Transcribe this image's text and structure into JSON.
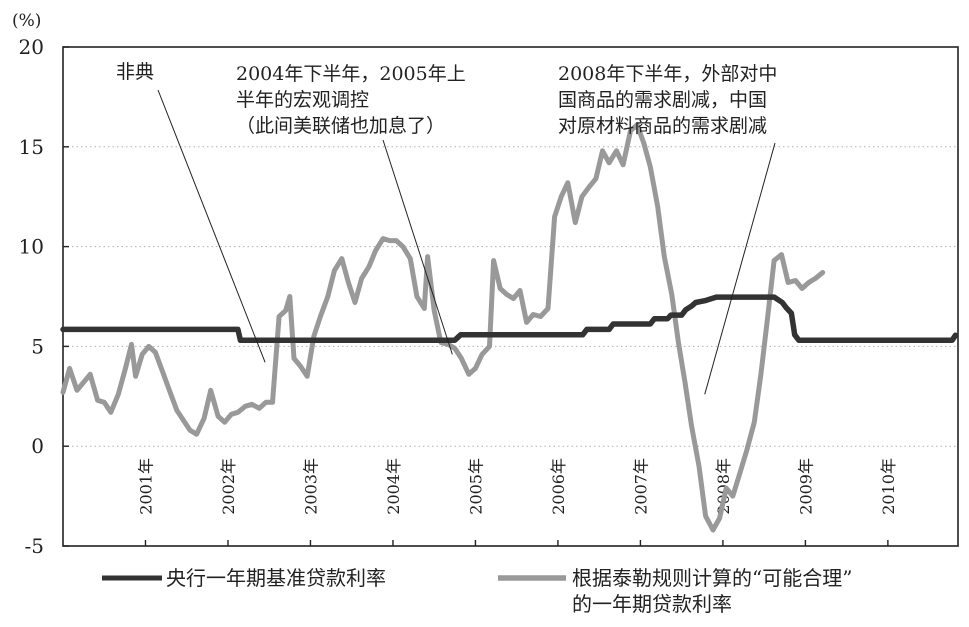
{
  "chart_data": {
    "type": "line",
    "unit_label": "(%)",
    "ylim": [
      -5,
      20
    ],
    "yticks": [
      -5,
      0,
      5,
      10,
      15,
      20
    ],
    "xlim": [
      2000.0,
      2010.85
    ],
    "xticks": [
      {
        "label": "2001年",
        "x": 2001.0
      },
      {
        "label": "2002年",
        "x": 2002.0
      },
      {
        "label": "2003年",
        "x": 2003.0
      },
      {
        "label": "2004年",
        "x": 2004.0
      },
      {
        "label": "2005年",
        "x": 2005.0
      },
      {
        "label": "2006年",
        "x": 2006.0
      },
      {
        "label": "2007年",
        "x": 2007.0
      },
      {
        "label": "2008年",
        "x": 2008.0
      },
      {
        "label": "2009年",
        "x": 2009.0
      },
      {
        "label": "2010年",
        "x": 2010.0
      }
    ],
    "grid": "horizontal-dotted",
    "legend_position": "bottom",
    "series": [
      {
        "name": "央行一年期基准贷款利率",
        "color": "#333333",
        "points": [
          [
            2000.0,
            5.85
          ],
          [
            2002.12,
            5.85
          ],
          [
            2002.15,
            5.31
          ],
          [
            2004.75,
            5.31
          ],
          [
            2004.82,
            5.58
          ],
          [
            2006.3,
            5.58
          ],
          [
            2006.35,
            5.85
          ],
          [
            2006.62,
            5.85
          ],
          [
            2006.67,
            6.12
          ],
          [
            2007.12,
            6.12
          ],
          [
            2007.17,
            6.39
          ],
          [
            2007.33,
            6.39
          ],
          [
            2007.37,
            6.57
          ],
          [
            2007.5,
            6.57
          ],
          [
            2007.55,
            6.84
          ],
          [
            2007.62,
            7.02
          ],
          [
            2007.67,
            7.2
          ],
          [
            2007.78,
            7.29
          ],
          [
            2007.92,
            7.47
          ],
          [
            2008.62,
            7.47
          ],
          [
            2008.72,
            7.2
          ],
          [
            2008.77,
            6.93
          ],
          [
            2008.83,
            6.66
          ],
          [
            2008.87,
            5.58
          ],
          [
            2008.92,
            5.31
          ],
          [
            2010.78,
            5.31
          ],
          [
            2010.82,
            5.56
          ]
        ]
      },
      {
        "name": "根据泰勒规则计算的“可能合理”的一年期贷款利率",
        "name_line1": "根据泰勒规则计算的“可能合理”",
        "name_line2": "的一年期贷款利率",
        "color": "#999999",
        "points": [
          [
            2000.0,
            2.7
          ],
          [
            2000.08,
            3.9
          ],
          [
            2000.17,
            2.8
          ],
          [
            2000.25,
            3.2
          ],
          [
            2000.33,
            3.6
          ],
          [
            2000.42,
            2.3
          ],
          [
            2000.5,
            2.2
          ],
          [
            2000.58,
            1.7
          ],
          [
            2000.67,
            2.6
          ],
          [
            2000.75,
            3.8
          ],
          [
            2000.83,
            5.1
          ],
          [
            2000.88,
            3.5
          ],
          [
            2000.96,
            4.6
          ],
          [
            2001.04,
            5.0
          ],
          [
            2001.12,
            4.7
          ],
          [
            2001.21,
            3.7
          ],
          [
            2001.29,
            2.8
          ],
          [
            2001.38,
            1.8
          ],
          [
            2001.46,
            1.3
          ],
          [
            2001.54,
            0.8
          ],
          [
            2001.62,
            0.6
          ],
          [
            2001.71,
            1.4
          ],
          [
            2001.79,
            2.8
          ],
          [
            2001.88,
            1.5
          ],
          [
            2001.96,
            1.2
          ],
          [
            2002.04,
            1.6
          ],
          [
            2002.12,
            1.7
          ],
          [
            2002.21,
            2.0
          ],
          [
            2002.29,
            2.1
          ],
          [
            2002.38,
            1.9
          ],
          [
            2002.46,
            2.2
          ],
          [
            2002.54,
            2.2
          ],
          [
            2002.62,
            6.5
          ],
          [
            2002.7,
            6.8
          ],
          [
            2002.75,
            7.5
          ],
          [
            2002.8,
            4.4
          ],
          [
            2002.88,
            4.0
          ],
          [
            2002.96,
            3.5
          ],
          [
            2003.04,
            5.5
          ],
          [
            2003.12,
            6.5
          ],
          [
            2003.21,
            7.5
          ],
          [
            2003.29,
            8.8
          ],
          [
            2003.38,
            9.4
          ],
          [
            2003.46,
            8.2
          ],
          [
            2003.54,
            7.2
          ],
          [
            2003.62,
            8.4
          ],
          [
            2003.71,
            9.0
          ],
          [
            2003.79,
            9.8
          ],
          [
            2003.88,
            10.4
          ],
          [
            2003.96,
            10.3
          ],
          [
            2004.04,
            10.3
          ],
          [
            2004.12,
            10.0
          ],
          [
            2004.21,
            9.4
          ],
          [
            2004.29,
            7.5
          ],
          [
            2004.38,
            6.9
          ],
          [
            2004.42,
            9.5
          ],
          [
            2004.5,
            6.8
          ],
          [
            2004.58,
            5.2
          ],
          [
            2004.67,
            5.1
          ],
          [
            2004.75,
            4.9
          ],
          [
            2004.83,
            4.4
          ],
          [
            2004.92,
            3.6
          ],
          [
            2005.0,
            3.9
          ],
          [
            2005.08,
            4.6
          ],
          [
            2005.17,
            5.0
          ],
          [
            2005.22,
            9.3
          ],
          [
            2005.3,
            7.9
          ],
          [
            2005.38,
            7.6
          ],
          [
            2005.46,
            7.4
          ],
          [
            2005.54,
            7.8
          ],
          [
            2005.62,
            6.2
          ],
          [
            2005.7,
            6.6
          ],
          [
            2005.79,
            6.5
          ],
          [
            2005.88,
            6.9
          ],
          [
            2005.96,
            11.5
          ],
          [
            2006.04,
            12.5
          ],
          [
            2006.12,
            13.2
          ],
          [
            2006.21,
            11.2
          ],
          [
            2006.29,
            12.5
          ],
          [
            2006.38,
            13.0
          ],
          [
            2006.46,
            13.4
          ],
          [
            2006.54,
            14.8
          ],
          [
            2006.62,
            14.2
          ],
          [
            2006.71,
            14.8
          ],
          [
            2006.79,
            14.1
          ],
          [
            2006.88,
            15.8
          ],
          [
            2006.96,
            16.1
          ],
          [
            2007.04,
            15.2
          ],
          [
            2007.12,
            14.0
          ],
          [
            2007.21,
            12.0
          ],
          [
            2007.29,
            9.5
          ],
          [
            2007.38,
            7.6
          ],
          [
            2007.46,
            5.2
          ],
          [
            2007.54,
            3.2
          ],
          [
            2007.62,
            1.0
          ],
          [
            2007.71,
            -1.0
          ],
          [
            2007.79,
            -3.5
          ],
          [
            2007.88,
            -4.2
          ],
          [
            2007.96,
            -3.6
          ],
          [
            2008.04,
            -2.1
          ],
          [
            2008.12,
            -2.5
          ],
          [
            2008.21,
            -1.3
          ],
          [
            2008.29,
            -0.2
          ],
          [
            2008.38,
            1.2
          ],
          [
            2008.46,
            3.6
          ],
          [
            2008.54,
            6.4
          ],
          [
            2008.62,
            9.3
          ],
          [
            2008.71,
            9.6
          ],
          [
            2008.79,
            8.2
          ],
          [
            2008.88,
            8.3
          ],
          [
            2008.96,
            7.9
          ],
          [
            2009.04,
            8.2
          ],
          [
            2009.12,
            8.4
          ],
          [
            2009.21,
            8.7
          ]
        ]
      }
    ],
    "annotations": [
      {
        "id": "sars",
        "lines": [
          "非典"
        ],
        "target": [
          2002.45,
          4.2
        ]
      },
      {
        "id": "macro",
        "lines": [
          "2004年下半年，2005年上",
          "半年的宏观调控",
          "（此间美联储也加息了）"
        ],
        "target": [
          2004.72,
          4.6
        ]
      },
      {
        "id": "crisis",
        "lines": [
          "2008年下半年，外部对中",
          "国商品的需求剧减，中国",
          "对原材料商品的需求剧减"
        ],
        "target": [
          2007.78,
          2.6
        ]
      }
    ]
  }
}
